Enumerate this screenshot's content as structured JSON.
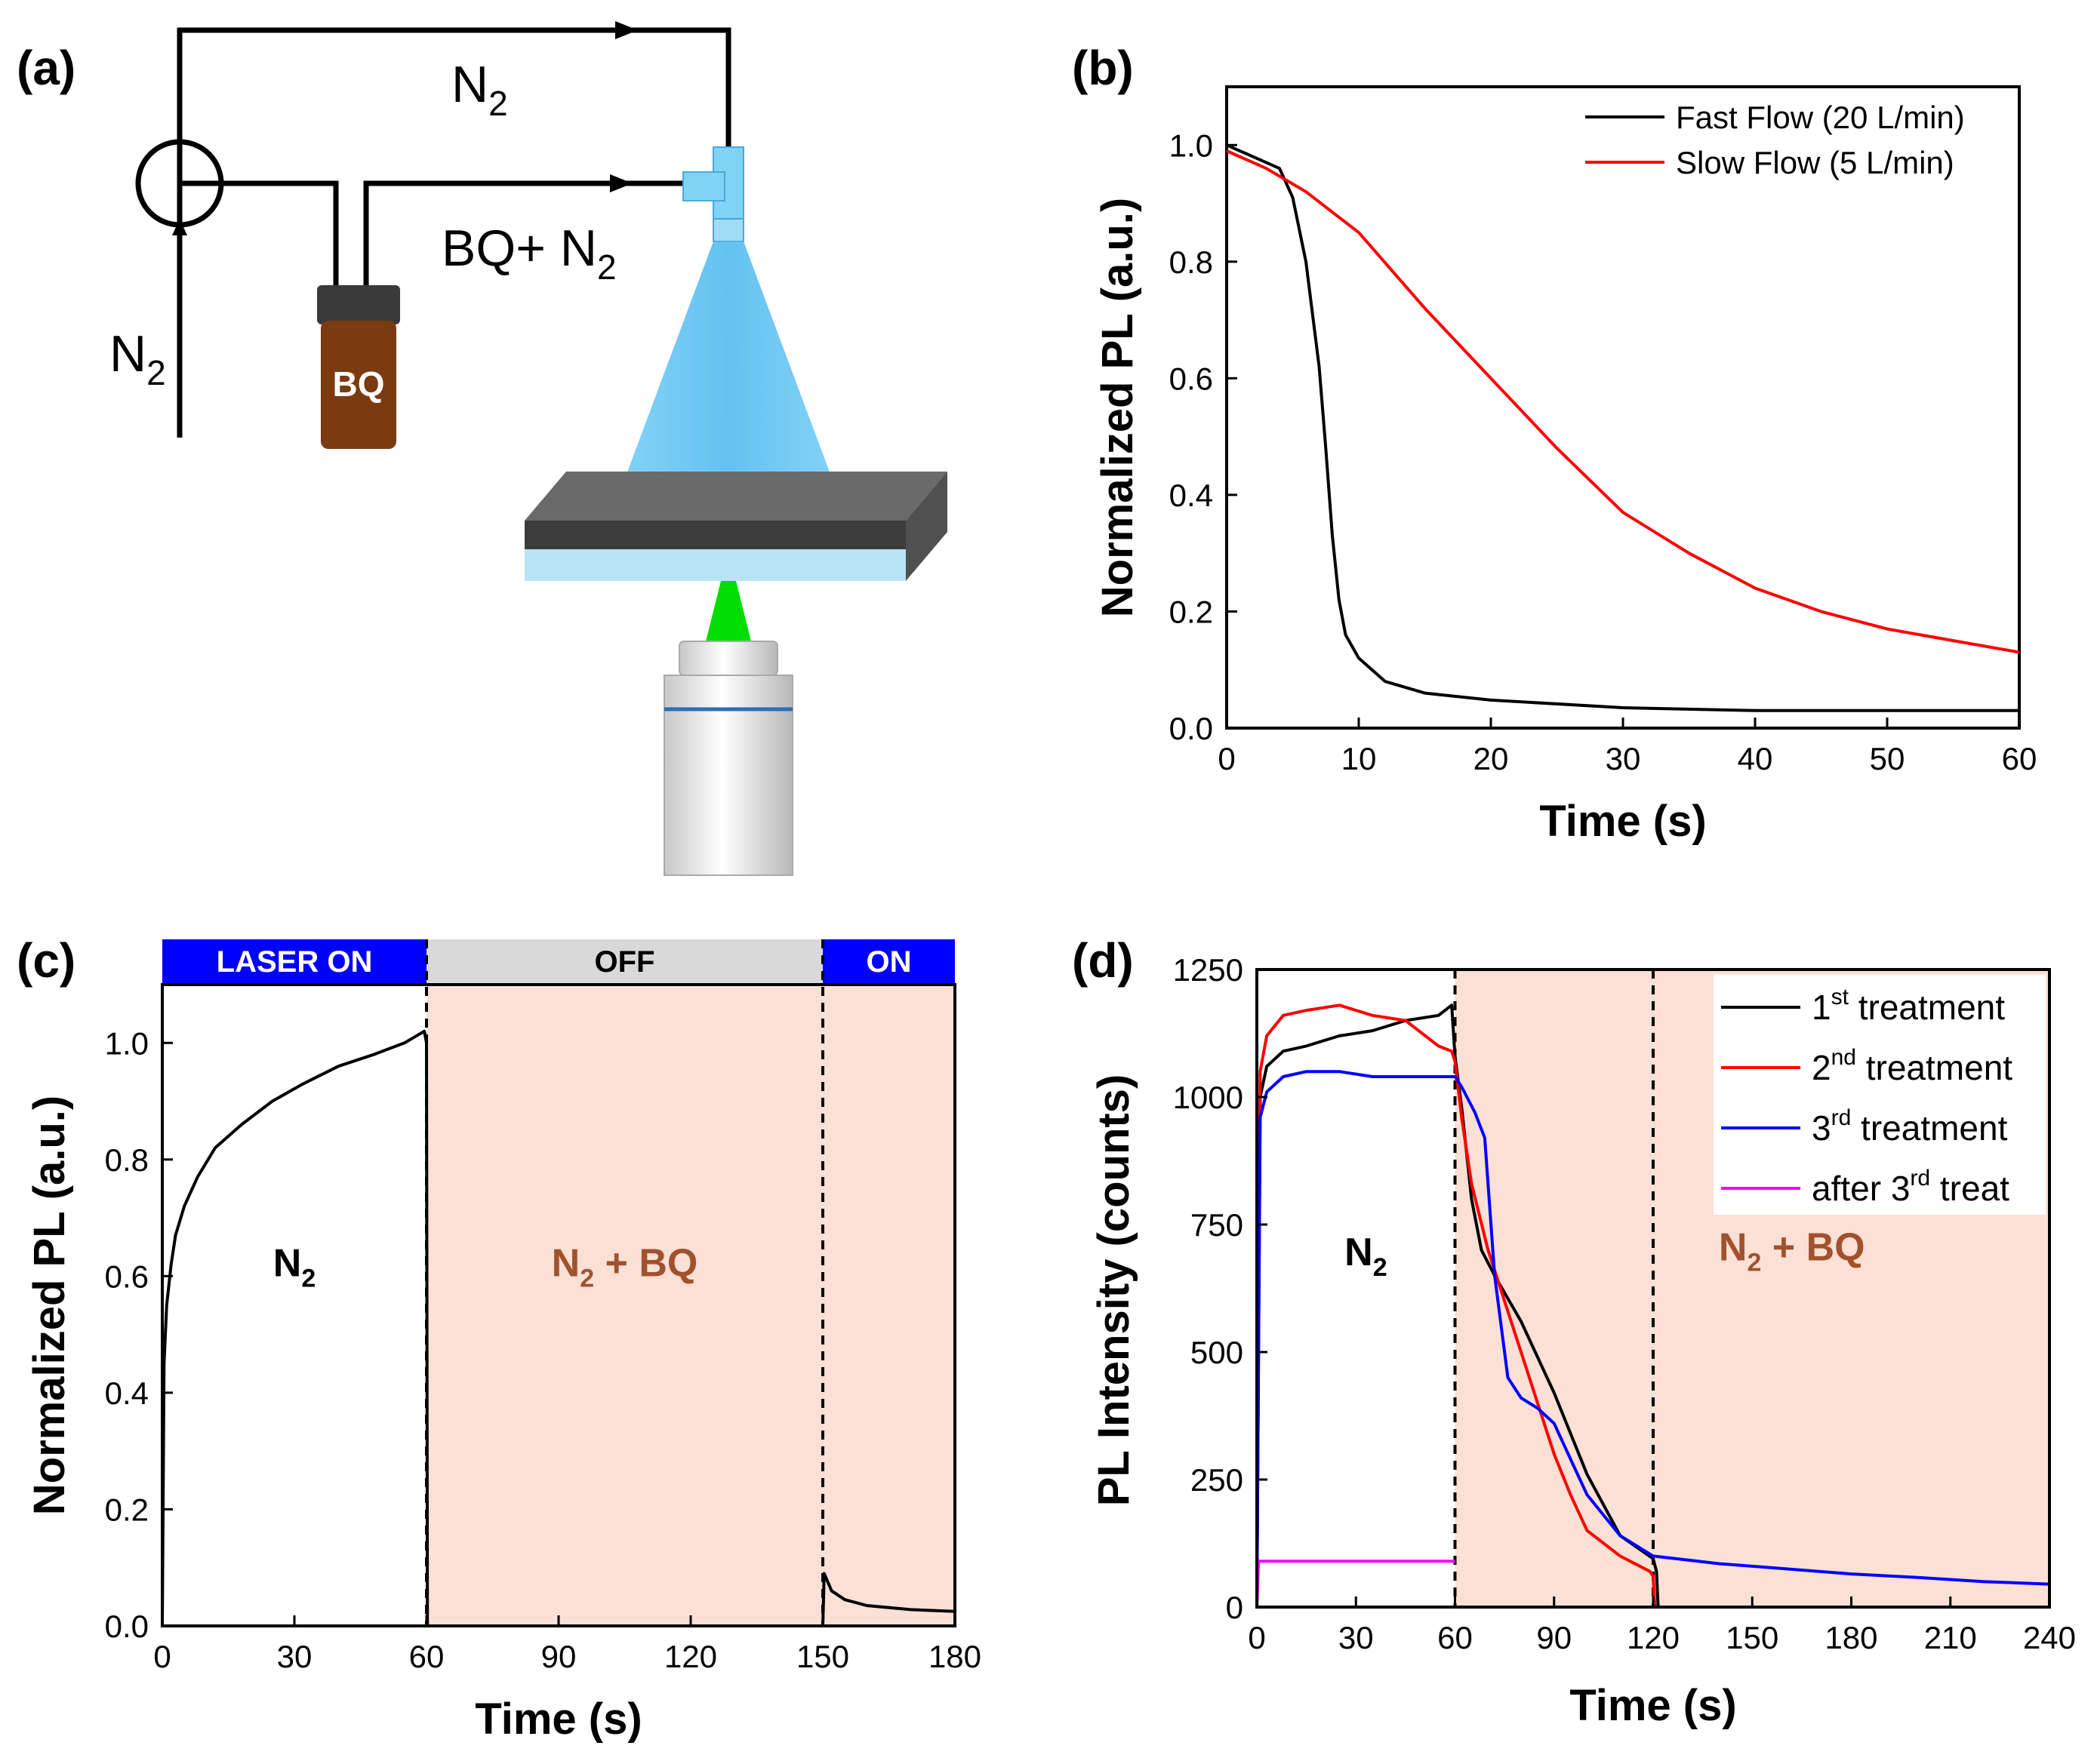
{
  "colors": {
    "black": "#000000",
    "red": "#ff0000",
    "blue": "#0000ff",
    "magenta": "#ff00ff",
    "shade": "#fbe0d6",
    "annot_brown": "#a0522d",
    "laser_blue": "#0000ff",
    "laser_off_gray": "#d9d9d9",
    "cone_blue": "#6ecbf5",
    "bottle_brown": "#7b3a10",
    "beam_green": "#00dd00"
  },
  "panel_a": {
    "label": "(a)",
    "n2_top": "N",
    "n2_top_sub": "2",
    "n2_left": "N",
    "n2_left_sub": "2",
    "bq_n2": "BQ+ N",
    "bq_n2_sub": "2",
    "bottle_label": "BQ"
  },
  "chart_data": [
    {
      "panel": "(b)",
      "type": "line",
      "xlabel": "Time (s)",
      "ylabel": "Normalized PL (a.u.)",
      "xlim": [
        0,
        60
      ],
      "ylim": [
        0,
        1.1
      ],
      "xticks": [
        0,
        10,
        20,
        30,
        40,
        50,
        60
      ],
      "yticks": [
        0.0,
        0.2,
        0.4,
        0.6,
        0.8,
        1.0
      ],
      "ytick_labels": [
        "0.0",
        "0.2",
        "0.4",
        "0.6",
        "0.8",
        "1.0"
      ],
      "legend_position": "top-right",
      "series": [
        {
          "name": "Fast Flow (20 L/min)",
          "color": "#000000",
          "x": [
            0,
            2,
            4,
            5,
            6,
            7,
            7.5,
            8,
            8.5,
            9,
            10,
            12,
            15,
            20,
            30,
            40,
            50,
            60
          ],
          "y": [
            1.0,
            0.98,
            0.96,
            0.91,
            0.8,
            0.62,
            0.48,
            0.33,
            0.22,
            0.16,
            0.12,
            0.08,
            0.06,
            0.048,
            0.035,
            0.03,
            0.03,
            0.03
          ]
        },
        {
          "name": "Slow Flow (5 L/min)",
          "color": "#ff0000",
          "x": [
            0,
            3,
            6,
            10,
            15,
            20,
            25,
            30,
            35,
            40,
            45,
            50,
            55,
            60
          ],
          "y": [
            0.99,
            0.96,
            0.92,
            0.85,
            0.72,
            0.6,
            0.48,
            0.37,
            0.3,
            0.24,
            0.2,
            0.17,
            0.15,
            0.13
          ]
        }
      ]
    },
    {
      "panel": "(c)",
      "type": "line",
      "xlabel": "Time (s)",
      "ylabel": "Normalized PL (a.u.)",
      "xlim": [
        0,
        180
      ],
      "ylim": [
        0,
        1.1
      ],
      "xticks": [
        0,
        30,
        60,
        90,
        120,
        150,
        180
      ],
      "yticks": [
        0.0,
        0.2,
        0.4,
        0.6,
        0.8,
        1.0
      ],
      "ytick_labels": [
        "0.0",
        "0.2",
        "0.4",
        "0.6",
        "0.8",
        "1.0"
      ],
      "banner": [
        {
          "label": "LASER ON",
          "from": 0,
          "to": 60
        },
        {
          "label": "OFF",
          "from": 60,
          "to": 150
        },
        {
          "label": "ON",
          "from": 150,
          "to": 180
        }
      ],
      "shaded_from": 60,
      "dashed_lines": [
        60,
        150
      ],
      "annotations": [
        {
          "text": "N",
          "sub": "2",
          "x": 30,
          "y": 0.6
        },
        {
          "text": "N",
          "sub": "2",
          "tail": " + BQ",
          "x": 105,
          "y": 0.6
        }
      ],
      "series": [
        {
          "name": "PL",
          "color": "#000000",
          "x": [
            0,
            0.4,
            1,
            2,
            3,
            5,
            8,
            12,
            18,
            25,
            32,
            40,
            48,
            55,
            59.5,
            60,
            60.2,
            150,
            150.3,
            152,
            155,
            160,
            170,
            180
          ],
          "y": [
            0,
            0.45,
            0.55,
            0.62,
            0.67,
            0.72,
            0.77,
            0.82,
            0.86,
            0.9,
            0.93,
            0.96,
            0.98,
            1.0,
            1.02,
            1.0,
            0.0,
            0.0,
            0.09,
            0.06,
            0.045,
            0.035,
            0.028,
            0.025
          ]
        }
      ]
    },
    {
      "panel": "(d)",
      "type": "line",
      "xlabel": "Time (s)",
      "ylabel": "PL Intensity (counts)",
      "xlim": [
        0,
        240
      ],
      "ylim": [
        0,
        1250
      ],
      "xticks": [
        0,
        30,
        60,
        90,
        120,
        150,
        180,
        210,
        240
      ],
      "yticks": [
        0,
        250,
        500,
        750,
        1000,
        1250
      ],
      "ytick_labels": [
        "0",
        "250",
        "500",
        "750",
        "1000",
        "1250"
      ],
      "shaded_from": 60,
      "dashed_lines": [
        60,
        120
      ],
      "legend_position": "top-right",
      "annotations": [
        {
          "text": "N",
          "sub": "2",
          "x": 33,
          "y": 670
        },
        {
          "text": "N",
          "sub": "2",
          "tail": " + BQ",
          "x": 162,
          "y": 680
        }
      ],
      "series": [
        {
          "name": "1st treatment",
          "legend_main": "1",
          "legend_sup": "st",
          "legend_tail": " treatment",
          "color": "#000000",
          "x": [
            0,
            1,
            3,
            8,
            15,
            25,
            35,
            45,
            55,
            59,
            60,
            62,
            65,
            68,
            72,
            80,
            90,
            100,
            110,
            120,
            121,
            121.5,
            240
          ],
          "y": [
            0,
            1000,
            1060,
            1090,
            1100,
            1120,
            1130,
            1150,
            1160,
            1180,
            1080,
            980,
            800,
            700,
            650,
            560,
            420,
            260,
            140,
            95,
            70,
            0,
            0
          ]
        },
        {
          "name": "2nd treatment",
          "legend_main": "2",
          "legend_sup": "nd",
          "legend_tail": " treatment",
          "color": "#ff0000",
          "x": [
            0,
            1,
            3,
            8,
            15,
            25,
            35,
            45,
            55,
            59,
            60,
            62,
            65,
            70,
            75,
            80,
            85,
            90,
            95,
            100,
            110,
            119,
            120,
            120.5,
            240
          ],
          "y": [
            0,
            1050,
            1120,
            1160,
            1170,
            1180,
            1160,
            1150,
            1100,
            1090,
            1070,
            960,
            830,
            700,
            600,
            500,
            400,
            300,
            220,
            150,
            100,
            70,
            60,
            0,
            0
          ]
        },
        {
          "name": "3rd treatment",
          "legend_main": "3",
          "legend_sup": "rd",
          "legend_tail": " treatment",
          "color": "#0000ff",
          "x": [
            0,
            1,
            3,
            8,
            15,
            25,
            35,
            45,
            55,
            60,
            62,
            66,
            69,
            72,
            76,
            80,
            85,
            90,
            95,
            100,
            110,
            120,
            140,
            160,
            180,
            200,
            220,
            240
          ],
          "y": [
            0,
            960,
            1010,
            1040,
            1050,
            1050,
            1040,
            1040,
            1040,
            1040,
            1020,
            970,
            920,
            650,
            450,
            410,
            390,
            360,
            290,
            220,
            140,
            100,
            85,
            75,
            65,
            58,
            50,
            45
          ]
        },
        {
          "name": "after 3rd treat",
          "legend_main": "after 3",
          "legend_sup": "rd",
          "legend_tail": " treat",
          "color": "#ff00ff",
          "x": [
            0,
            0.5,
            60
          ],
          "y": [
            0,
            90,
            90
          ]
        }
      ]
    }
  ]
}
